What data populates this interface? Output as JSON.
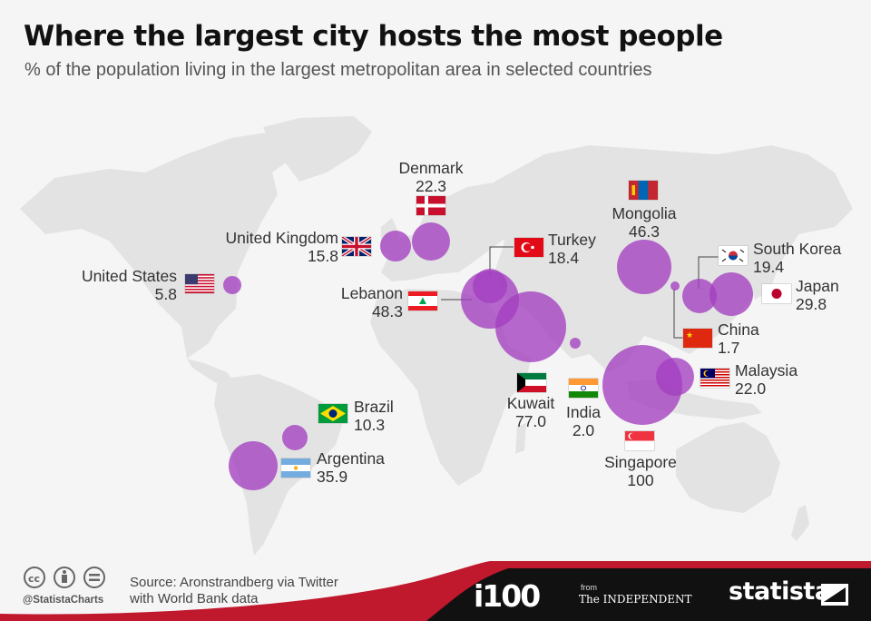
{
  "title": "Where the largest city hosts the most people",
  "subtitle": "% of the population living in the largest metropolitan area in selected countries",
  "bubble_color": "#a33fc0",
  "countries": [
    {
      "key": "united-states",
      "name": "United States",
      "value": "5.8"
    },
    {
      "key": "united-kingdom",
      "name": "United Kingdom",
      "value": "15.8"
    },
    {
      "key": "denmark",
      "name": "Denmark",
      "value": "22.3"
    },
    {
      "key": "lebanon",
      "name": "Lebanon",
      "value": "48.3"
    },
    {
      "key": "turkey",
      "name": "Turkey",
      "value": "18.4"
    },
    {
      "key": "kuwait",
      "name": "Kuwait",
      "value": "77.0"
    },
    {
      "key": "india",
      "name": "India",
      "value": "2.0"
    },
    {
      "key": "mongolia",
      "name": "Mongolia",
      "value": "46.3"
    },
    {
      "key": "south-korea",
      "name": "South Korea",
      "value": "19.4"
    },
    {
      "key": "japan",
      "name": "Japan",
      "value": "29.8"
    },
    {
      "key": "china",
      "name": "China",
      "value": "1.7"
    },
    {
      "key": "malaysia",
      "name": "Malaysia",
      "value": "22.0"
    },
    {
      "key": "singapore",
      "name": "Singapore",
      "value": "100"
    },
    {
      "key": "brazil",
      "name": "Brazil",
      "value": "10.3"
    },
    {
      "key": "argentina",
      "name": "Argentina",
      "value": "35.9"
    }
  ],
  "footer": {
    "handle": "@StatistaCharts",
    "source_line1": "Source: Aronstrandberg via Twitter",
    "source_line2": "with World Bank data",
    "i100": "i100",
    "from": "from",
    "independent": "The INDEPENDENT",
    "statista": "statista"
  }
}
